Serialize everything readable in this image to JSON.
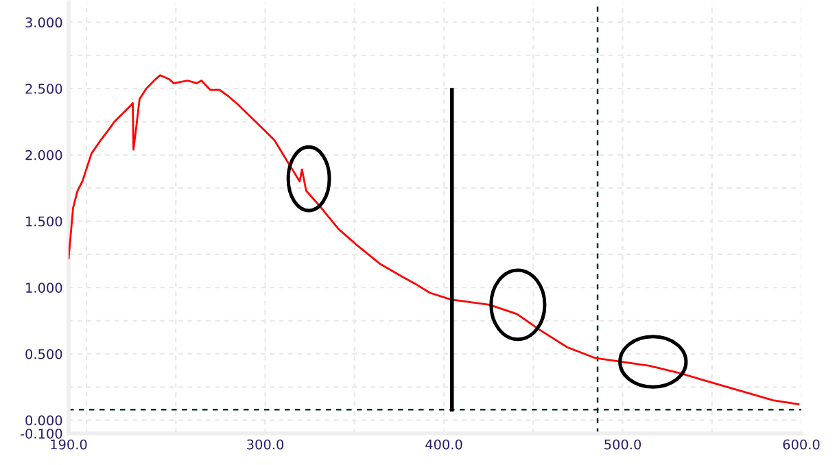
{
  "chart_data": {
    "type": "line",
    "xlim": [
      190,
      600
    ],
    "xticks": [
      {
        "value": 190,
        "label": "190.0"
      },
      {
        "value": 200,
        "label": null
      },
      {
        "value": 250,
        "label": null
      },
      {
        "value": 300,
        "label": "300.0"
      },
      {
        "value": 350,
        "label": null
      },
      {
        "value": 400,
        "label": "400.0"
      },
      {
        "value": 450,
        "label": null
      },
      {
        "value": 500,
        "label": "500.0"
      },
      {
        "value": 550,
        "label": null
      },
      {
        "value": 600,
        "label": "600.0"
      }
    ],
    "ylim": [
      -0.1,
      3.15
    ],
    "yticks": [
      {
        "value": -0.1,
        "label": "-0.100"
      },
      {
        "value": 0,
        "label": "0.000"
      },
      {
        "value": 0.25,
        "label": null
      },
      {
        "value": 0.5,
        "label": "0.500"
      },
      {
        "value": 0.75,
        "label": null
      },
      {
        "value": 1.0,
        "label": "1.000"
      },
      {
        "value": 1.25,
        "label": null
      },
      {
        "value": 1.5,
        "label": "1.500"
      },
      {
        "value": 1.75,
        "label": null
      },
      {
        "value": 2.0,
        "label": "2.000"
      },
      {
        "value": 2.25,
        "label": null
      },
      {
        "value": 2.5,
        "label": "2.500"
      },
      {
        "value": 2.75,
        "label": null
      },
      {
        "value": 3.0,
        "label": "3.000"
      }
    ],
    "grid": true,
    "series": [
      {
        "color": "#ff0000",
        "x": [
          190,
          192.5,
          195,
          197.7,
          202.8,
          207.9,
          213,
          215.6,
          224.6,
          225.9,
          226.3,
          227.6,
          229.7,
          233.5,
          238.6,
          241.2,
          246.3,
          248.9,
          256.6,
          261.7,
          264.3,
          269.3,
          274.5,
          279.6,
          284.7,
          292.4,
          300,
          305.2,
          312.9,
          319.3,
          320.6,
          322.9,
          330.8,
          341.1,
          351.3,
          364.1,
          376.9,
          383.7,
          392.2,
          403.8,
          425.5,
          440.9,
          453.7,
          469,
          484.4,
          499.8,
          515.1,
          530.5,
          548.4,
          566.3,
          584.2,
          598.4
        ],
        "values": [
          1.22,
          1.6,
          1.73,
          1.8,
          2.01,
          2.11,
          2.2,
          2.25,
          2.37,
          2.39,
          2.04,
          2.18,
          2.42,
          2.5,
          2.57,
          2.6,
          2.57,
          2.54,
          2.56,
          2.54,
          2.56,
          2.49,
          2.49,
          2.44,
          2.38,
          2.28,
          2.18,
          2.11,
          1.94,
          1.8,
          1.89,
          1.73,
          1.61,
          1.44,
          1.32,
          1.18,
          1.08,
          1.03,
          0.96,
          0.91,
          0.87,
          0.8,
          0.68,
          0.55,
          0.47,
          0.44,
          0.41,
          0.36,
          0.29,
          0.22,
          0.15,
          0.12
        ]
      },
      {
        "color": "#000000",
        "x": [
          404.5,
          404.5
        ],
        "values": [
          0.08,
          2.49
        ]
      }
    ],
    "ref_lines": [
      {
        "axis": "y",
        "value": 0.08,
        "color": "#003322",
        "line_style": "dashed"
      },
      {
        "axis": "x",
        "value": 486,
        "color": "#003322",
        "line_style": "dashed"
      }
    ]
  }
}
